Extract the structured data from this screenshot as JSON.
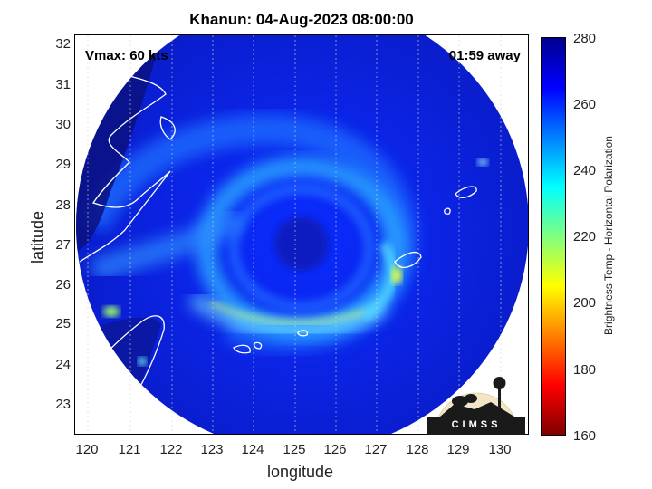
{
  "title": "Khanun: 04-Aug-2023 08:00:00",
  "vmax": "Vmax: 60 kts",
  "time_away": "01:59 away",
  "xlabel": "longitude",
  "ylabel": "latitude",
  "x_ticks": [
    "120",
    "121",
    "122",
    "123",
    "124",
    "125",
    "126",
    "127",
    "128",
    "129",
    "130"
  ],
  "y_ticks": [
    "32",
    "31",
    "30",
    "29",
    "28",
    "27",
    "26",
    "25",
    "24",
    "23"
  ],
  "colorbar": {
    "label": "Brightness Temp - Horizontal Polarization",
    "ticks": [
      "280",
      "260",
      "240",
      "220",
      "200",
      "180",
      "160"
    ],
    "range": [
      160,
      280
    ]
  },
  "logo_text": "CIMSS",
  "map_extent": {
    "lon": [
      119.7,
      130.9
    ],
    "lat": [
      22.2,
      32.2
    ]
  },
  "colors": {
    "ocean_background": "#0a1fd6",
    "eyewall_band": "#1fa6ff",
    "coastline": "#ffffff"
  }
}
